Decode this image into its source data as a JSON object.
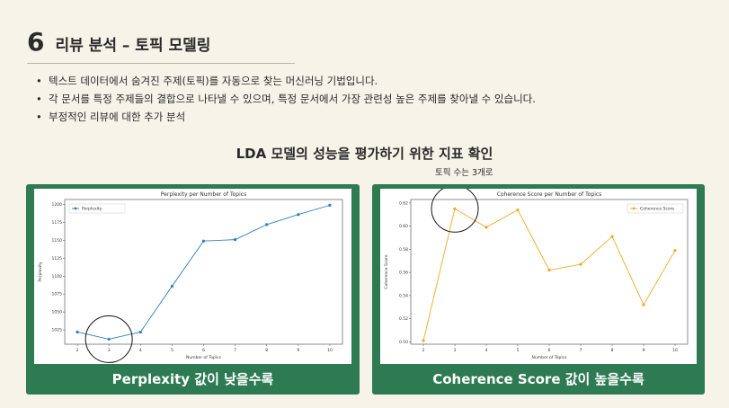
{
  "section": {
    "number": "6",
    "title": "리뷰 분석 – 토픽 모델링"
  },
  "bullets": [
    "텍스트 데이터에서 숨겨진 주제(토픽)를 자동으로 찾는 머신러닝 기법입니다.",
    "각 문서를 특정 주제들의 결합으로 나타낼 수 있으며, 특정 문서에서 가장 관련성 높은 주제를 찾아낼 수 있습니다.",
    "부정적인 리뷰에 대한 추가 분석"
  ],
  "middle": {
    "title": "LDA 모델의 성능을 평가하기 위한 지표 확인",
    "note": "토픽 수는 3개로"
  },
  "cards": [
    {
      "caption": "Perplexity 값이 낮을수록"
    },
    {
      "caption": "Coherence Score 값이 높을수록"
    }
  ],
  "colors": {
    "background": "#f6f3e8",
    "card_green": "#2e7a52",
    "perplexity_line": "#2f7fc1",
    "coherence_line": "#f5a623"
  },
  "chart_data": [
    {
      "type": "line",
      "title": "Perplexity per Number of Topics",
      "xlabel": "Number of Topics",
      "ylabel": "Perplexity",
      "x": [
        2,
        3,
        4,
        5,
        6,
        7,
        8,
        9,
        10
      ],
      "xticks": [
        "2",
        "3",
        "4",
        "5",
        "6",
        "7",
        "8",
        "9",
        "10"
      ],
      "yticks": [
        "1025",
        "1050",
        "1075",
        "1100",
        "1125",
        "1150",
        "1175",
        "1200"
      ],
      "ytick_values": [
        1025,
        1050,
        1075,
        1100,
        1125,
        1150,
        1175,
        1200
      ],
      "ylim": [
        1005,
        1207
      ],
      "series": [
        {
          "name": "Perplexity",
          "values": [
            1022,
            1012,
            1022,
            1086,
            1149,
            1151,
            1172,
            1186,
            1199
          ]
        }
      ],
      "legend": "top-left",
      "highlight_x": 3
    },
    {
      "type": "line",
      "title": "Coherence Score per Number of Topics",
      "xlabel": "Number of Topics",
      "ylabel": "Coherence Score",
      "x": [
        2,
        3,
        4,
        5,
        6,
        7,
        8,
        9,
        10
      ],
      "xticks": [
        "2",
        "3",
        "4",
        "5",
        "6",
        "7",
        "8",
        "9",
        "10"
      ],
      "yticks": [
        "0.50",
        "0.52",
        "0.54",
        "0.56",
        "0.58",
        "0.60",
        "0.62"
      ],
      "ytick_values": [
        0.5,
        0.52,
        0.54,
        0.56,
        0.58,
        0.6,
        0.62
      ],
      "ylim": [
        0.498,
        0.623
      ],
      "series": [
        {
          "name": "Coherence Score",
          "values": [
            0.501,
            0.615,
            0.599,
            0.614,
            0.562,
            0.567,
            0.591,
            0.532,
            0.579
          ]
        }
      ],
      "legend": "top-right",
      "highlight_x": 3
    }
  ]
}
